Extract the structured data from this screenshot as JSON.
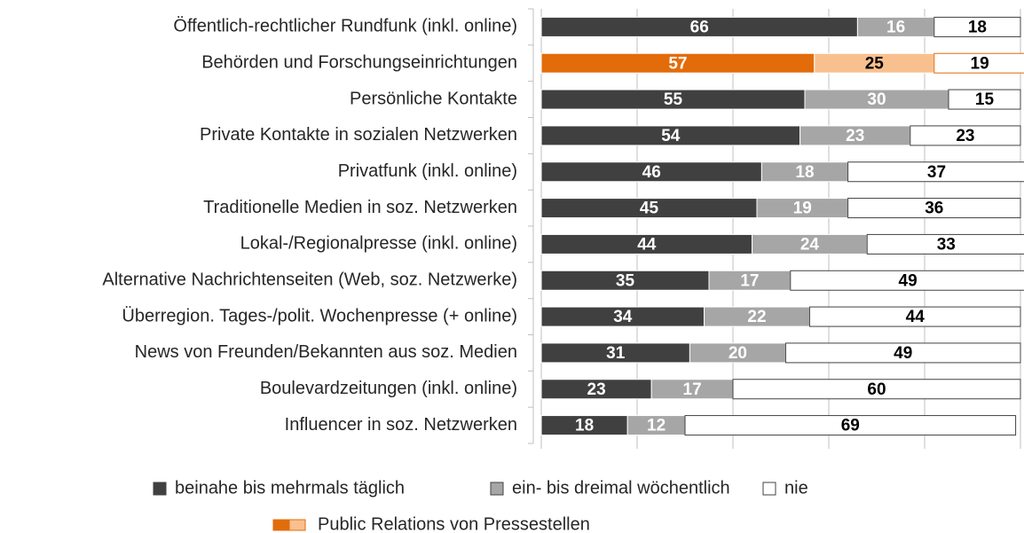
{
  "chart_data": {
    "type": "stacked-barh",
    "categories": [
      "Öffentlich-rechtlicher Rundfunk (inkl. online)",
      "Behörden und Forschungseinrichtungen",
      "Persönliche Kontakte",
      "Private Kontakte in sozialen Netzwerken",
      "Privatfunk (inkl. online)",
      "Traditionelle Medien in soz. Netzwerken",
      "Lokal-/Regionalpresse (inkl. online)",
      "Alternative Nachrichtenseiten (Web, soz. Netzwerke)",
      "Überregion. Tages-/polit. Wochenpresse (+ online)",
      "News von Freunden/Bekannten aus soz. Medien",
      "Boulevardzeitungen (inkl. online)",
      "Influencer in soz. Netzwerken"
    ],
    "series": [
      {
        "name": "beinahe bis mehrmals täglich",
        "color": "#404040",
        "label_color": "#ffffff",
        "values": [
          66,
          57,
          55,
          54,
          46,
          45,
          44,
          35,
          34,
          31,
          23,
          18
        ]
      },
      {
        "name": "ein- bis dreimal wöchentlich",
        "color": "#a6a6a6",
        "label_color": "#ffffff",
        "values": [
          16,
          25,
          30,
          23,
          18,
          19,
          24,
          17,
          22,
          20,
          17,
          12
        ]
      },
      {
        "name": "nie",
        "color": "#ffffff",
        "label_color": "#000000",
        "values": [
          18,
          19,
          15,
          23,
          37,
          36,
          33,
          49,
          44,
          49,
          60,
          69
        ]
      }
    ],
    "highlight": {
      "name": "Public Relations von Pressestellen",
      "category_index": 1,
      "colors": [
        "#e36c0a",
        "#f9c08f",
        "#ffffff"
      ],
      "label_colors": [
        "#ffffff",
        "#000000",
        "#000000"
      ]
    },
    "xlim": [
      0,
      100
    ],
    "xticks": [
      0,
      20,
      40,
      60,
      80,
      100
    ],
    "grid": true
  }
}
